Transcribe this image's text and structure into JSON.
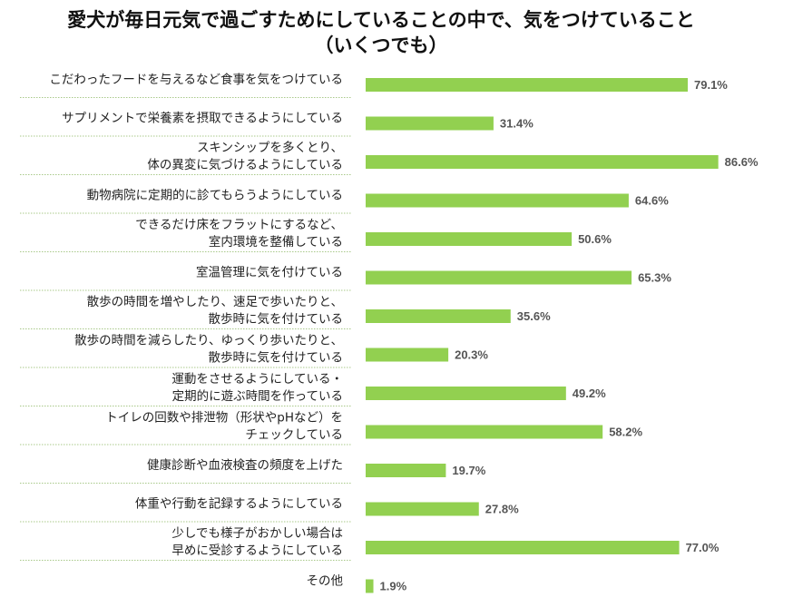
{
  "chart_data": {
    "type": "bar",
    "orientation": "horizontal",
    "title": "愛犬が毎日元気で過ごすためにしていることの中で、気をつけていること",
    "subtitle": "（いくつでも）",
    "xlabel": "",
    "ylabel": "",
    "xlim": [
      0,
      100
    ],
    "grid": false,
    "categories": [
      [
        "こだわったフードを与えるなど食事を気をつけている"
      ],
      [
        "サプリメントで栄養素を摂取できるようにしている"
      ],
      [
        "スキンシップを多くとり、",
        "体の異変に気づけるようにしている"
      ],
      [
        "動物病院に定期的に診てもらうようにしている"
      ],
      [
        "できるだけ床をフラットにするなど、",
        "室内環境を整備している"
      ],
      [
        "室温管理に気を付けている"
      ],
      [
        "散歩の時間を増やしたり、速足で歩いたりと、",
        "散歩時に気を付けている"
      ],
      [
        "散歩の時間を減らしたり、ゆっくり歩いたりと、",
        "散歩時に気を付けている"
      ],
      [
        "運動をさせるようにしている・",
        "定期的に遊ぶ時間を作っている"
      ],
      [
        "トイレの回数や排泄物（形状やpHなど）を",
        "チェックしている"
      ],
      [
        "健康診断や血液検査の頻度を上げた"
      ],
      [
        "体重や行動を記録するようにしている"
      ],
      [
        "少しでも様子がおかしい場合は",
        "早めに受診するようにしている"
      ],
      [
        "その他"
      ]
    ],
    "values": [
      79.1,
      31.4,
      86.6,
      64.6,
      50.6,
      65.3,
      35.6,
      20.3,
      49.2,
      58.2,
      19.7,
      27.8,
      77.0,
      1.9
    ],
    "value_labels": [
      "79.1%",
      "31.4%",
      "86.6%",
      "64.6%",
      "50.6%",
      "65.3%",
      "35.6%",
      "20.3%",
      "49.2%",
      "58.2%",
      "19.7%",
      "27.8%",
      "77.0%",
      "1.9%"
    ],
    "bar_color": "#92d050",
    "divider_color": "#a9c98a"
  }
}
